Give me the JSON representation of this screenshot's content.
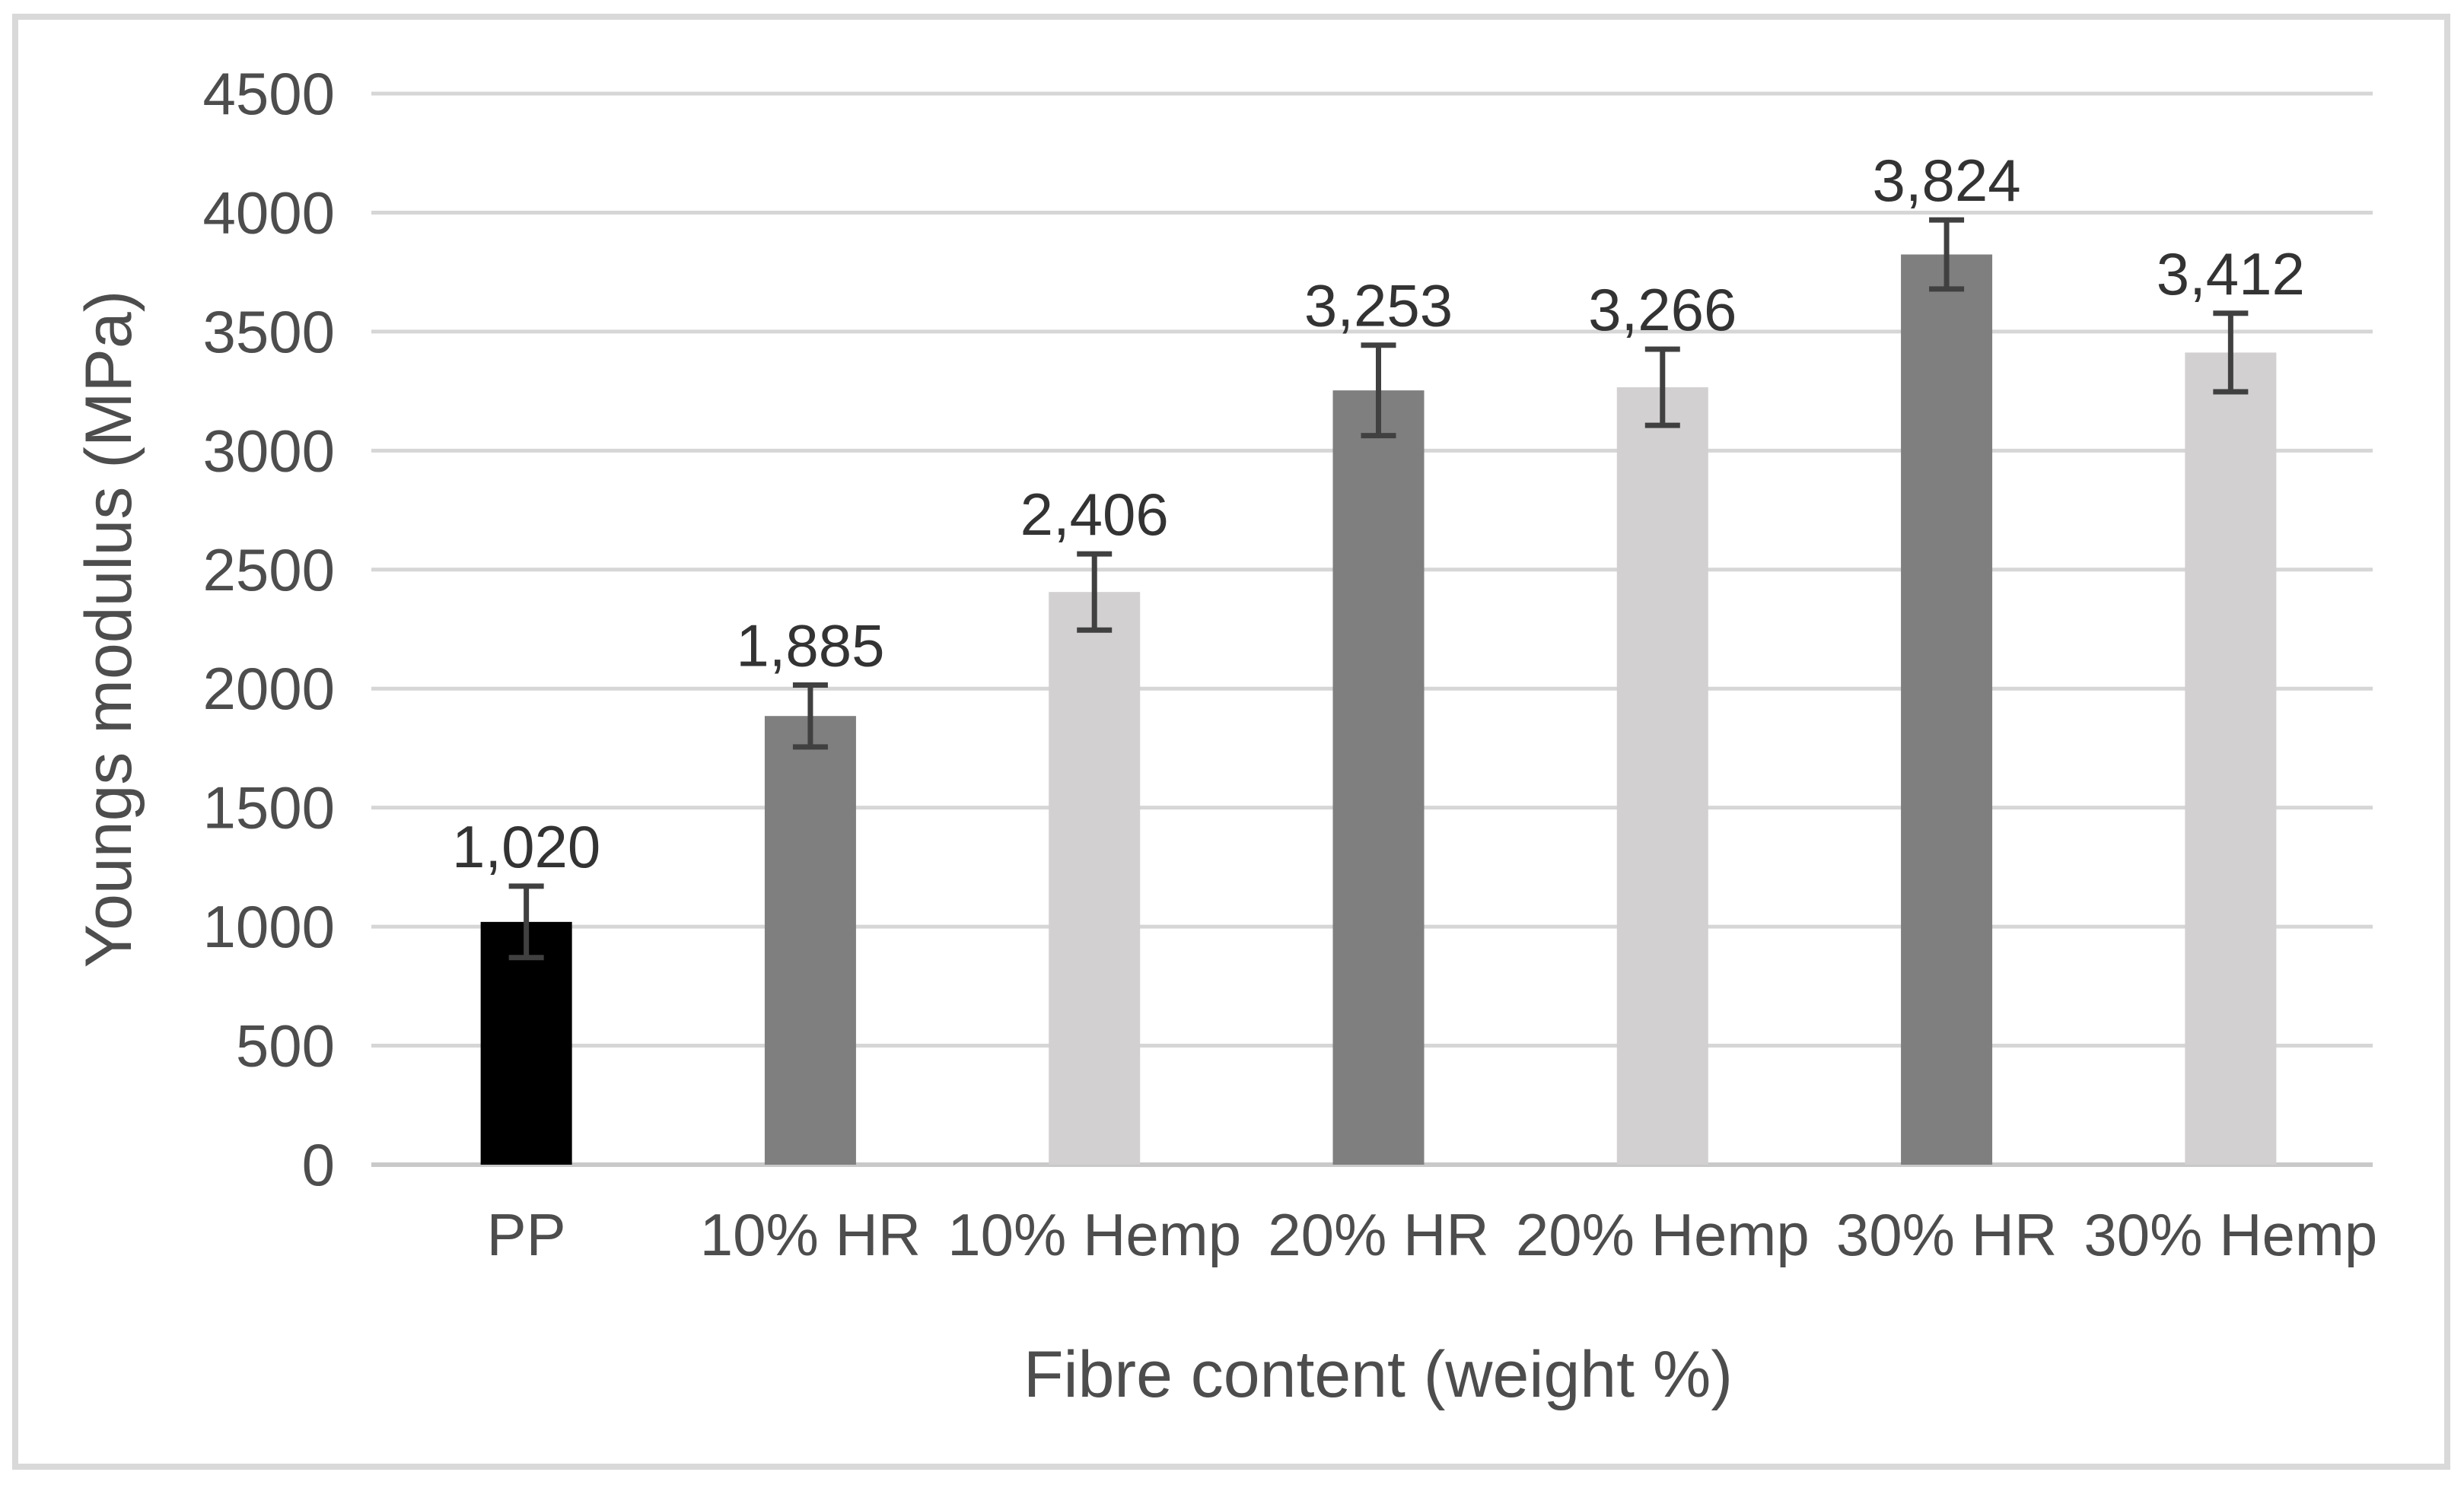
{
  "figure": {
    "background": "#ffffff",
    "border_color": "#d9d9d9"
  },
  "chart_data": {
    "type": "bar",
    "title": "",
    "categories": [
      "PP",
      "10% HR",
      "10% Hemp",
      "20% HR",
      "20% Hemp",
      "30% HR",
      "30% Hemp"
    ],
    "values": [
      1020,
      1885,
      2406,
      3253,
      3266,
      3824,
      3412
    ],
    "value_labels": [
      "1,020",
      "1,885",
      "2,406",
      "3,253",
      "3,266",
      "3,824",
      "3,412"
    ],
    "errors": [
      150,
      130,
      160,
      190,
      160,
      145,
      165
    ],
    "bar_colors": [
      "#000000",
      "#7f7f7f",
      "#d2d0d0",
      "#7f7f7f",
      "#d2d0d0",
      "#7f7f7f",
      "#d2d0d0"
    ],
    "xlabel": "Fibre content (weight %)",
    "ylabel": "Youngs modulus (MPa)",
    "ylim": [
      0,
      4500
    ],
    "ytick_step": 500,
    "ytick_labels": [
      "0",
      "500",
      "1000",
      "1500",
      "2000",
      "2500",
      "3000",
      "3500",
      "4000",
      "4500"
    ],
    "grid": true,
    "legend": false,
    "colors": {
      "gridline": "#d6d6d6",
      "axis_line": "#c9c9c9",
      "error_bar": "#404040",
      "tick_text": "#4d4d4d",
      "value_label_text": "#333333"
    }
  }
}
